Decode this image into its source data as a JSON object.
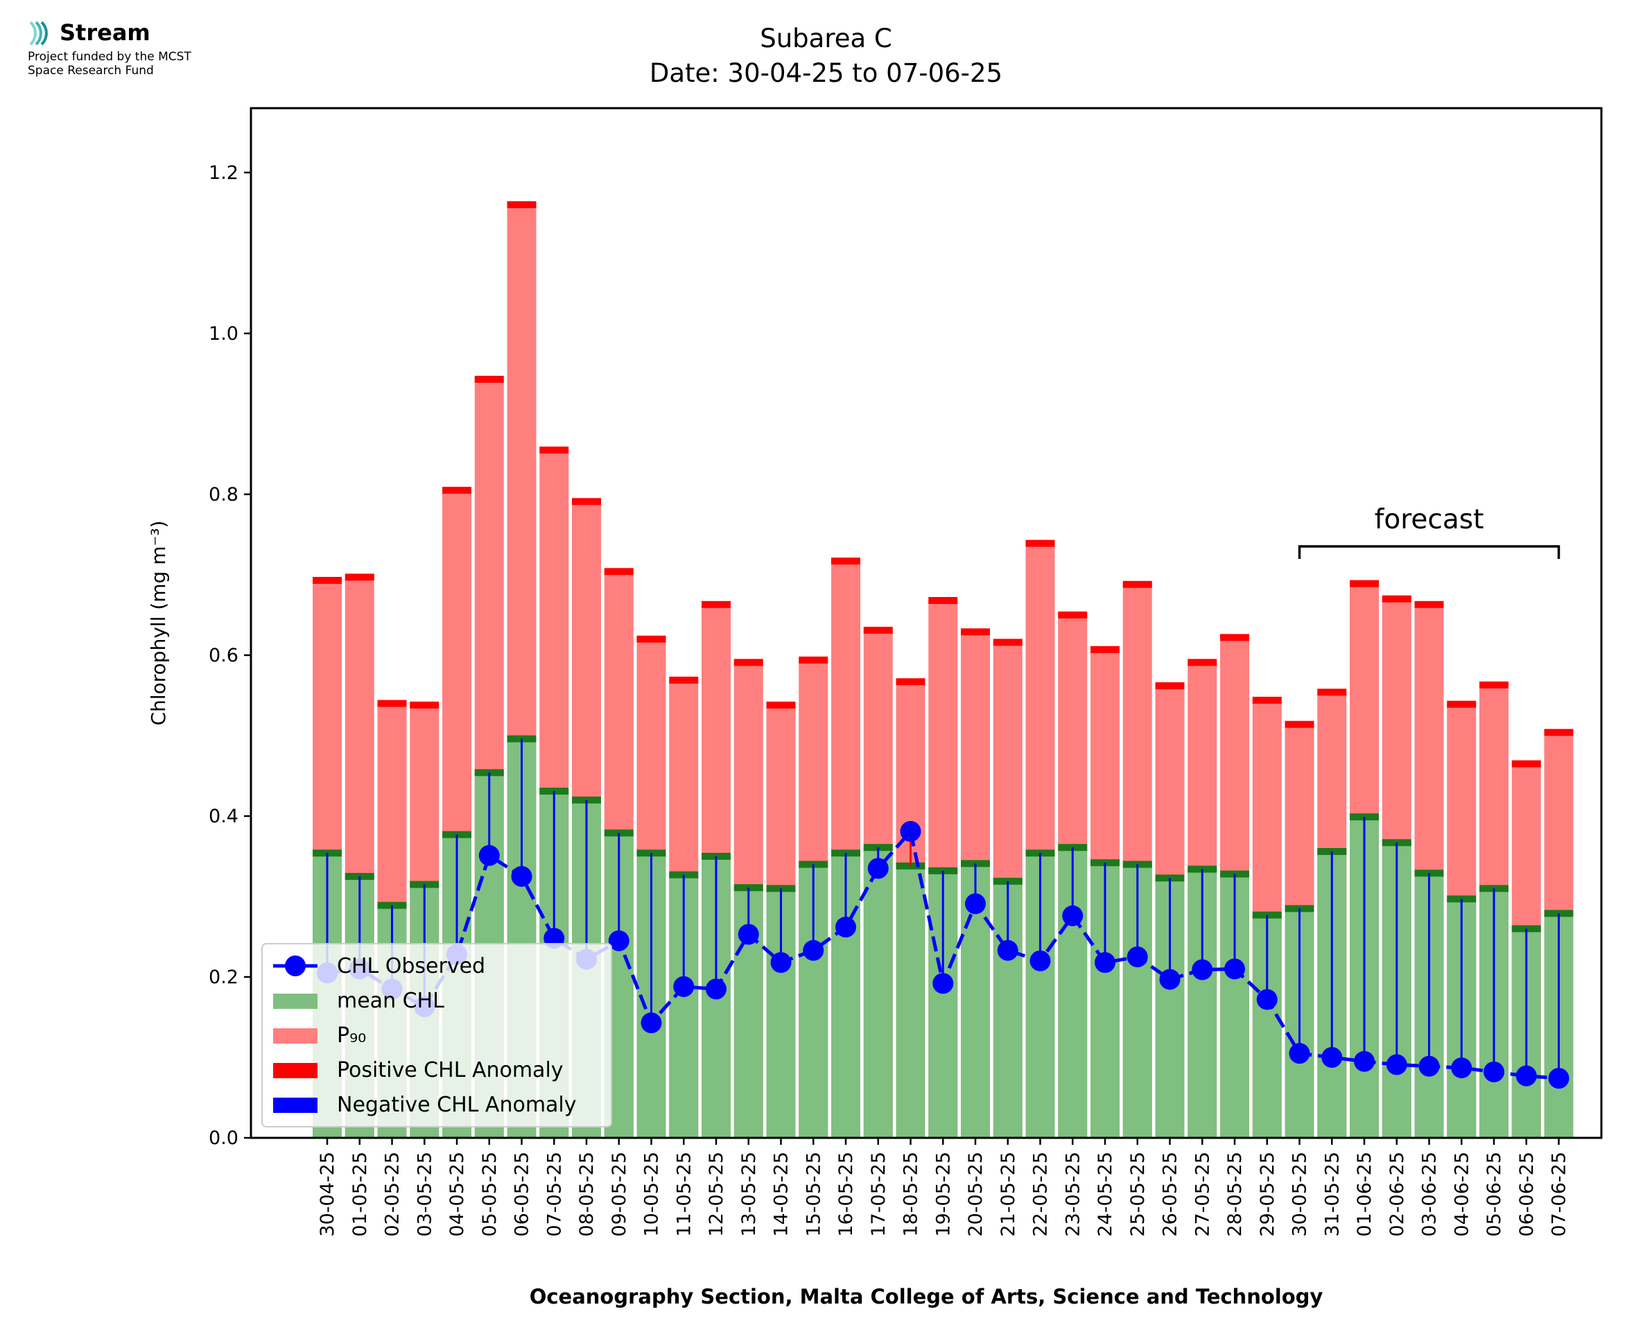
{
  "logo": {
    "name": "Stream",
    "subtitle_line1": "Project funded by the MCST",
    "subtitle_line2": "Space Research Fund",
    "colors": [
      "#7fd8d4",
      "#3fb6b6",
      "#1e8f97"
    ]
  },
  "chart_data": {
    "type": "bar",
    "title": "Subarea C",
    "subtitle": "Date: 30-04-25 to 07-06-25",
    "xlabel": "Oceanography Section, Malta College of Arts, Science and Technology",
    "ylabel": "Chlorophyll (mg m⁻³)",
    "ylim": [
      0,
      1.28
    ],
    "yticks": [
      "0.0",
      "0.2",
      "0.4",
      "0.6",
      "0.8",
      "1.0",
      "1.2"
    ],
    "categories": [
      "30-04-25",
      "01-05-25",
      "02-05-25",
      "03-05-25",
      "04-05-25",
      "05-05-25",
      "06-05-25",
      "07-05-25",
      "08-05-25",
      "09-05-25",
      "10-05-25",
      "11-05-25",
      "12-05-25",
      "13-05-25",
      "14-05-25",
      "15-05-25",
      "16-05-25",
      "17-05-25",
      "18-05-25",
      "19-05-25",
      "20-05-25",
      "21-05-25",
      "22-05-25",
      "23-05-25",
      "24-05-25",
      "25-05-25",
      "26-05-25",
      "27-05-25",
      "28-05-25",
      "29-05-25",
      "30-05-25",
      "31-05-25",
      "01-06-25",
      "02-06-25",
      "03-06-25",
      "04-06-25",
      "05-06-25",
      "06-06-25",
      "07-06-25"
    ],
    "series": [
      {
        "name": "CHL Observed",
        "style": "dashed line with markers",
        "color": "#0000ff",
        "values": [
          0.205,
          0.21,
          0.185,
          0.163,
          0.228,
          0.351,
          0.325,
          0.248,
          0.222,
          0.245,
          0.143,
          0.188,
          0.185,
          0.253,
          0.218,
          0.233,
          0.262,
          0.335,
          0.381,
          0.192,
          0.291,
          0.233,
          0.22,
          0.276,
          0.218,
          0.225,
          0.197,
          0.209,
          0.21,
          0.172,
          0.105,
          0.1,
          0.095,
          0.091,
          0.089,
          0.087,
          0.082,
          0.077,
          0.074
        ]
      },
      {
        "name": "mean CHL",
        "color": "#7fbf7f",
        "values": [
          0.354,
          0.325,
          0.289,
          0.315,
          0.377,
          0.454,
          0.496,
          0.431,
          0.42,
          0.379,
          0.354,
          0.327,
          0.35,
          0.311,
          0.31,
          0.34,
          0.354,
          0.361,
          0.338,
          0.332,
          0.341,
          0.319,
          0.354,
          0.361,
          0.342,
          0.34,
          0.323,
          0.334,
          0.328,
          0.277,
          0.285,
          0.356,
          0.399,
          0.367,
          0.329,
          0.297,
          0.31,
          0.26,
          0.279
        ]
      },
      {
        "name": "P₉₀",
        "color": "#ff7f7f",
        "values": [
          0.693,
          0.697,
          0.54,
          0.538,
          0.805,
          0.943,
          1.16,
          0.855,
          0.791,
          0.704,
          0.62,
          0.569,
          0.663,
          0.591,
          0.538,
          0.594,
          0.717,
          0.631,
          0.567,
          0.668,
          0.629,
          0.616,
          0.739,
          0.65,
          0.607,
          0.688,
          0.562,
          0.591,
          0.622,
          0.544,
          0.514,
          0.554,
          0.689,
          0.67,
          0.663,
          0.539,
          0.563,
          0.465,
          0.504
        ]
      }
    ],
    "legend": {
      "placement": "lower-left",
      "entries": [
        "CHL Observed",
        "mean CHL",
        "P₉₀",
        "Positive CHL Anomaly",
        "Negative CHL Anomaly"
      ],
      "colors": [
        "#0000ff",
        "#7fbf7f",
        "#ff7f7f",
        "#ff0000",
        "#0000ff"
      ]
    },
    "annotation": {
      "text": "forecast",
      "from": "30-05-25",
      "to": "07-06-25"
    },
    "colors": {
      "mean_cap": "#1b7a1b",
      "p90_cap": "#ff0000",
      "anomaly_neg": "#0000ff",
      "anomaly_pos": "#ff0000"
    }
  }
}
